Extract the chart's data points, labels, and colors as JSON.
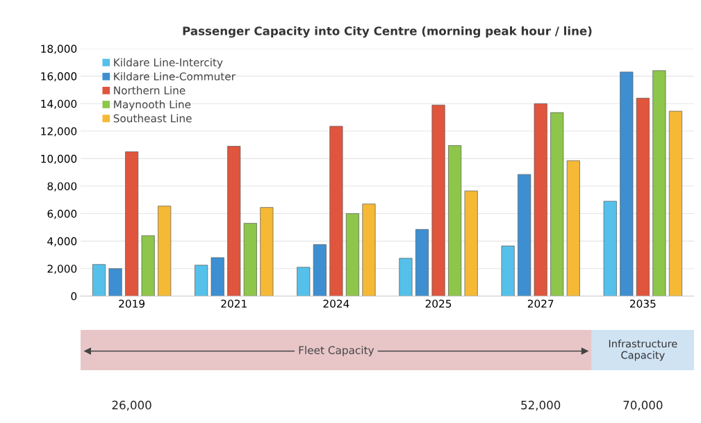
{
  "chart_data": {
    "type": "bar",
    "title": "Passenger Capacity into City Centre (morning peak hour / line)",
    "categories": [
      "2019",
      "2021",
      "2024",
      "2025",
      "2027",
      "2035"
    ],
    "series": [
      {
        "name": "Kildare Line-Intercity",
        "color": "#55c1ea",
        "values": [
          2300,
          2250,
          2100,
          2750,
          3650,
          6900
        ]
      },
      {
        "name": "Kildare Line-Commuter",
        "color": "#3d8fd1",
        "values": [
          2000,
          2800,
          3750,
          4850,
          8850,
          16300
        ]
      },
      {
        "name": "Northern Line",
        "color": "#e0553d",
        "values": [
          10500,
          10900,
          12350,
          13900,
          14000,
          14400
        ]
      },
      {
        "name": "Maynooth Line",
        "color": "#8dc64a",
        "values": [
          4400,
          5300,
          6000,
          10950,
          13350,
          16400
        ]
      },
      {
        "name": "Southeast Line",
        "color": "#f5b935",
        "values": [
          6550,
          6450,
          6700,
          7650,
          9850,
          13450
        ]
      }
    ],
    "ylim": [
      0,
      18000
    ],
    "yticks": [
      {
        "value": 0,
        "label": "0"
      },
      {
        "value": 2000,
        "label": "2,000"
      },
      {
        "value": 4000,
        "label": "4,000"
      },
      {
        "value": 6000,
        "label": "6,000"
      },
      {
        "value": 8000,
        "label": "8,000"
      },
      {
        "value": 10000,
        "label": "10,000"
      },
      {
        "value": 12000,
        "label": "12,000"
      },
      {
        "value": 14000,
        "label": "14,000"
      },
      {
        "value": 16000,
        "label": "16,000"
      },
      {
        "value": 18000,
        "label": "18,000"
      }
    ],
    "grid": "y",
    "legend": "top left",
    "annotations": [
      "Fleet Capacity",
      "Infrastructure\nCapacity",
      "26,000",
      "52,000",
      "70,000"
    ]
  }
}
